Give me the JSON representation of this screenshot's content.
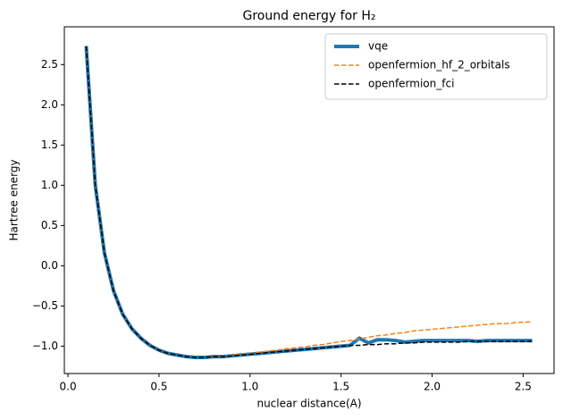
{
  "chart_data": {
    "type": "line",
    "title": "Ground energy for H₂",
    "x_label": "nuclear distance(A)",
    "y_label": "Hartree energy",
    "x": [
      0.1,
      0.15,
      0.2,
      0.25,
      0.3,
      0.35,
      0.4,
      0.45,
      0.5,
      0.55,
      0.6,
      0.65,
      0.7,
      0.75,
      0.8,
      0.85,
      0.9,
      0.95,
      1.0,
      1.05,
      1.1,
      1.15,
      1.2,
      1.25,
      1.3,
      1.35,
      1.4,
      1.45,
      1.5,
      1.55,
      1.6,
      1.65,
      1.7,
      1.75,
      1.8,
      1.85,
      1.9,
      1.95,
      2.0,
      2.05,
      2.1,
      2.15,
      2.2,
      2.25,
      2.3,
      2.35,
      2.4,
      2.45,
      2.5,
      2.55
    ],
    "series": [
      {
        "name": "vqe",
        "color": "#1f77b4",
        "style": "solid",
        "width": 4,
        "values": [
          2.73,
          1.0,
          0.16,
          -0.31,
          -0.6,
          -0.78,
          -0.9,
          -0.99,
          -1.05,
          -1.09,
          -1.11,
          -1.13,
          -1.14,
          -1.14,
          -1.13,
          -1.13,
          -1.12,
          -1.11,
          -1.1,
          -1.09,
          -1.08,
          -1.07,
          -1.06,
          -1.05,
          -1.04,
          -1.03,
          -1.02,
          -1.01,
          -1.0,
          -0.99,
          -0.9,
          -0.96,
          -0.92,
          -0.92,
          -0.93,
          -0.95,
          -0.94,
          -0.93,
          -0.93,
          -0.93,
          -0.93,
          -0.93,
          -0.93,
          -0.94,
          -0.93,
          -0.93,
          -0.93,
          -0.93,
          -0.93,
          -0.93
        ]
      },
      {
        "name": "openfermion_hf_2_orbitals",
        "color": "#ff7f0e",
        "style": "dashed",
        "width": 1.5,
        "values": [
          2.73,
          1.0,
          0.16,
          -0.31,
          -0.6,
          -0.78,
          -0.9,
          -0.99,
          -1.05,
          -1.09,
          -1.11,
          -1.13,
          -1.14,
          -1.14,
          -1.13,
          -1.13,
          -1.11,
          -1.1,
          -1.09,
          -1.08,
          -1.06,
          -1.05,
          -1.03,
          -1.02,
          -1.01,
          -0.99,
          -0.98,
          -0.96,
          -0.94,
          -0.93,
          -0.91,
          -0.89,
          -0.87,
          -0.86,
          -0.84,
          -0.83,
          -0.81,
          -0.8,
          -0.79,
          -0.78,
          -0.77,
          -0.76,
          -0.75,
          -0.74,
          -0.73,
          -0.72,
          -0.72,
          -0.71,
          -0.7,
          -0.7
        ]
      },
      {
        "name": "openfermion_fci",
        "color": "#000000",
        "style": "dashed",
        "width": 1.5,
        "values": [
          2.73,
          1.0,
          0.16,
          -0.31,
          -0.6,
          -0.78,
          -0.9,
          -0.99,
          -1.05,
          -1.09,
          -1.11,
          -1.13,
          -1.14,
          -1.14,
          -1.13,
          -1.13,
          -1.12,
          -1.11,
          -1.1,
          -1.09,
          -1.08,
          -1.07,
          -1.06,
          -1.05,
          -1.04,
          -1.03,
          -1.02,
          -1.01,
          -1.0,
          -0.99,
          -0.99,
          -0.98,
          -0.98,
          -0.97,
          -0.97,
          -0.96,
          -0.96,
          -0.95,
          -0.95,
          -0.95,
          -0.95,
          -0.95,
          -0.94,
          -0.94,
          -0.94,
          -0.94,
          -0.94,
          -0.94,
          -0.94,
          -0.94
        ]
      }
    ],
    "xlim": [
      -0.02,
      2.67
    ],
    "ylim": [
      -1.34,
      2.97
    ],
    "xticks": [
      {
        "value": 0,
        "label": "0.0"
      },
      {
        "value": 0.5,
        "label": "0.5"
      },
      {
        "value": 1,
        "label": "1.0"
      },
      {
        "value": 1.5,
        "label": "1.5"
      },
      {
        "value": 2,
        "label": "2.0"
      },
      {
        "value": 2.5,
        "label": "2.5"
      }
    ],
    "yticks": [
      {
        "value": -1,
        "label": "−1.0"
      },
      {
        "value": -0.5,
        "label": "−0.5"
      },
      {
        "value": 0,
        "label": "0.0"
      },
      {
        "value": 0.5,
        "label": "0.5"
      },
      {
        "value": 1,
        "label": "1.0"
      },
      {
        "value": 1.5,
        "label": "1.5"
      },
      {
        "value": 2,
        "label": "2.0"
      },
      {
        "value": 2.5,
        "label": "2.5"
      }
    ],
    "legend": "upper right",
    "grid": false
  }
}
